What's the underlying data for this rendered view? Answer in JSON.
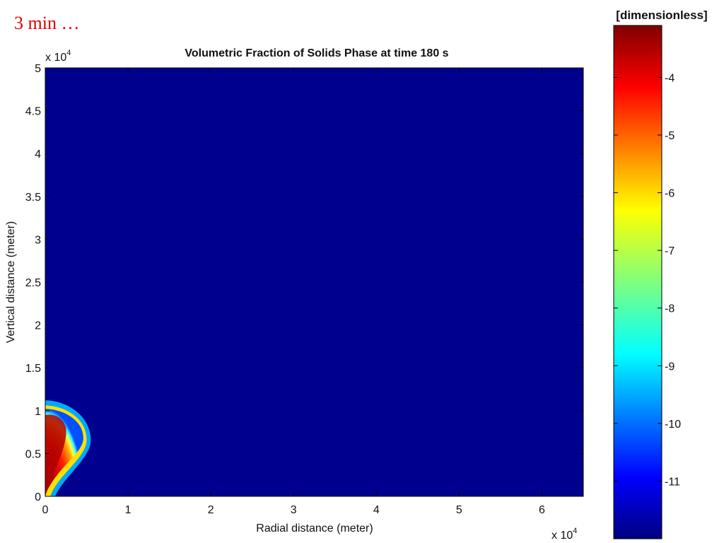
{
  "slide": {
    "caption": "3 min …"
  },
  "chart_data": {
    "type": "heatmap",
    "title": "Volumetric Fraction of Solids Phase at time 180 s",
    "xlabel": "Radial distance (meter)",
    "ylabel": "Vertical distance (meter)",
    "x_multiplier": "x 10",
    "x_multiplier_exp": "4",
    "y_multiplier": "x 10",
    "y_multiplier_exp": "4",
    "xlim": [
      0,
      6.5
    ],
    "ylim": [
      0,
      5
    ],
    "x_ticks": [
      0,
      1,
      2,
      3,
      4,
      5,
      6
    ],
    "x_tick_labels": [
      "0",
      "1",
      "2",
      "3",
      "4",
      "5",
      "6"
    ],
    "y_ticks": [
      0,
      0.5,
      1,
      1.5,
      2,
      2.5,
      3,
      3.5,
      4,
      4.5,
      5
    ],
    "y_tick_labels": [
      "0",
      "0.5",
      "1",
      "1.5",
      "2",
      "2.5",
      "3",
      "3.5",
      "4",
      "4.5",
      "5"
    ],
    "background_color": "#00008f",
    "plume": {
      "description_values": "cloud near origin, radial extent ~0.55 (x10^4 m), vertical extent ~1.1 (x10^4 m)",
      "max_x": 0.55,
      "max_y": 1.12
    },
    "colorbar": {
      "unit_label": "[dimensionless]",
      "range": [
        -12,
        -3.1
      ],
      "ticks": [
        -4,
        -5,
        -6,
        -7,
        -8,
        -9,
        -10,
        -11
      ],
      "tick_labels": [
        "-4",
        "-5",
        "-6",
        "-7",
        "-8",
        "-9",
        "-10",
        "-11"
      ],
      "colormap": "jet"
    }
  }
}
